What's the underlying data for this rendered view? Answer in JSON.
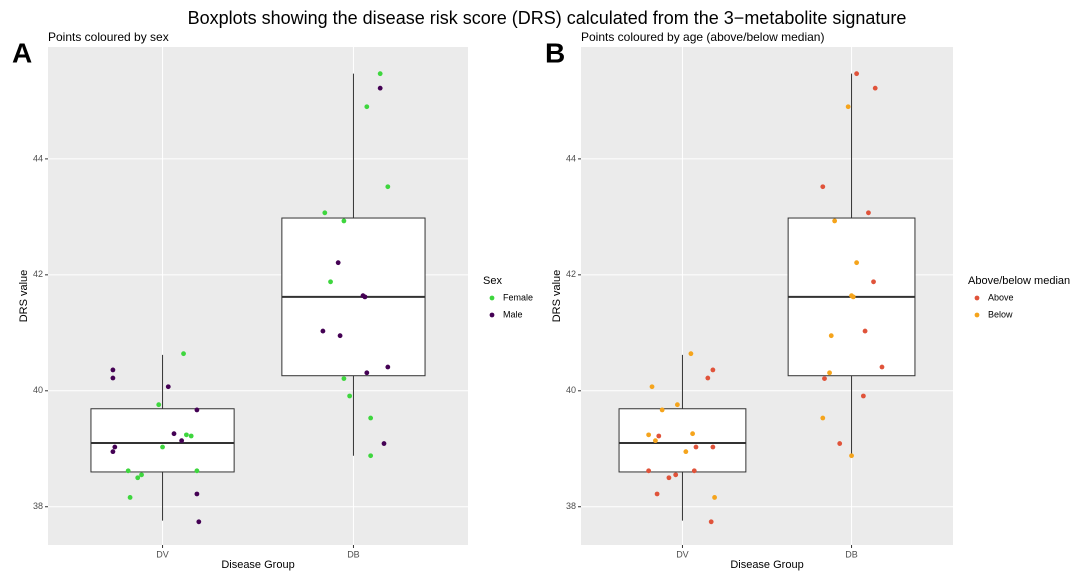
{
  "title": "Boxplots showing the disease risk score (DRS) calculated from the 3−metabolite signature",
  "chart_data": [
    {
      "type": "boxplot",
      "panel_label": "A",
      "subtitle": "Points coloured by sex",
      "xlabel": "Disease Group",
      "ylabel": "DRS value",
      "categories": [
        "DV",
        "DB"
      ],
      "xlim": [
        0.4,
        2.6
      ],
      "ylim": [
        37.34,
        45.93
      ],
      "yticks": [
        38,
        40,
        42,
        44
      ],
      "grid": true,
      "boxes": [
        {
          "min": 37.76,
          "q1": 38.6,
          "median": 39.1,
          "q3": 39.69,
          "max": 40.62
        },
        {
          "min": 38.88,
          "q1": 40.26,
          "median": 41.62,
          "q3": 42.98,
          "max": 45.47
        }
      ],
      "legend_title": "Sex",
      "series": [
        {
          "name": "Female",
          "color": "#3ed63e",
          "x": [
            1.11,
            0.98,
            1.125,
            1.15,
            1.0,
            0.82,
            1.18,
            0.89,
            0.87,
            0.83,
            2.14,
            2.07,
            2.18,
            1.85,
            1.95,
            1.88,
            1.95,
            1.98,
            2.09,
            2.09
          ],
          "values": [
            40.64,
            39.76,
            39.24,
            39.22,
            39.03,
            38.62,
            38.62,
            38.55,
            38.5,
            38.16,
            45.47,
            44.9,
            43.52,
            43.07,
            42.93,
            41.88,
            40.21,
            39.91,
            39.53,
            38.88
          ]
        },
        {
          "name": "Male",
          "color": "#440154",
          "x": [
            0.74,
            0.74,
            1.03,
            1.18,
            1.06,
            1.1,
            0.75,
            0.74,
            1.18,
            1.19,
            2.14,
            1.92,
            2.05,
            2.06,
            1.84,
            1.93,
            2.18,
            2.07,
            2.16
          ],
          "values": [
            40.36,
            40.22,
            40.07,
            39.67,
            39.26,
            39.14,
            39.03,
            38.95,
            38.22,
            37.74,
            45.22,
            42.21,
            41.64,
            41.62,
            41.03,
            40.95,
            40.41,
            40.31,
            39.09
          ]
        }
      ]
    },
    {
      "type": "boxplot",
      "panel_label": "B",
      "subtitle": "Points coloured by age (above/below median)",
      "xlabel": "Disease Group",
      "ylabel": "DRS value",
      "categories": [
        "DV",
        "DB"
      ],
      "xlim": [
        0.4,
        2.6
      ],
      "ylim": [
        37.34,
        45.93
      ],
      "yticks": [
        38,
        40,
        42,
        44
      ],
      "grid": true,
      "boxes": [
        {
          "min": 37.76,
          "q1": 38.6,
          "median": 39.1,
          "q3": 39.69,
          "max": 40.62
        },
        {
          "min": 38.88,
          "q1": 40.26,
          "median": 41.62,
          "q3": 42.98,
          "max": 45.47
        }
      ],
      "legend_title": "Above/below median",
      "series": [
        {
          "name": "Above",
          "color": "#e0533a",
          "x": [
            1.18,
            1.15,
            0.86,
            1.08,
            1.18,
            0.8,
            1.07,
            0.96,
            0.92,
            0.85,
            1.17,
            2.03,
            2.14,
            1.83,
            2.1,
            2.13,
            2.08,
            2.18,
            1.84,
            2.07,
            1.93
          ],
          "values": [
            40.36,
            40.22,
            39.22,
            39.03,
            39.03,
            38.62,
            38.62,
            38.55,
            38.5,
            38.22,
            37.74,
            45.47,
            45.22,
            43.52,
            43.07,
            41.88,
            41.03,
            40.41,
            40.21,
            39.91,
            39.09
          ]
        },
        {
          "name": "Below",
          "color": "#f5a41c",
          "x": [
            1.05,
            0.82,
            0.97,
            0.88,
            1.06,
            0.8,
            0.84,
            1.02,
            1.19,
            1.98,
            1.9,
            2.03,
            2.0,
            2.01,
            1.88,
            1.87,
            1.83,
            2.0
          ],
          "values": [
            40.64,
            40.07,
            39.76,
            39.67,
            39.26,
            39.24,
            39.14,
            38.95,
            38.16,
            44.9,
            42.93,
            42.21,
            41.64,
            41.62,
            40.95,
            40.31,
            39.53,
            38.88
          ]
        }
      ]
    }
  ]
}
